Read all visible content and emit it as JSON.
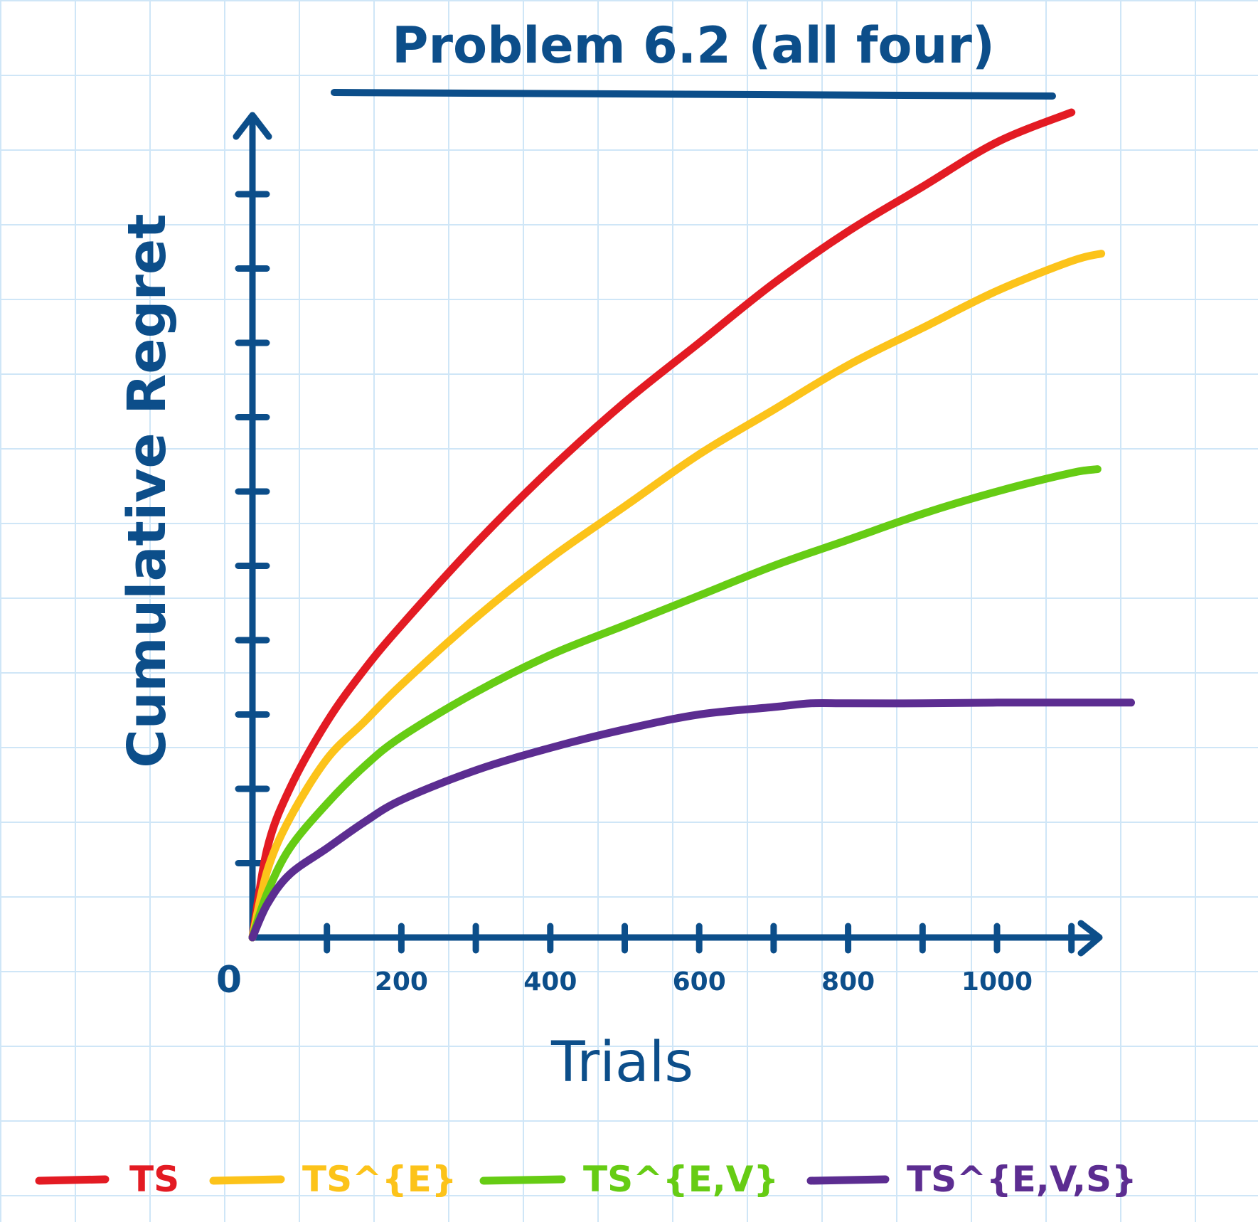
{
  "chart_data": {
    "type": "line",
    "title": "Problem 6.2 (all four)",
    "xlabel": "Trials",
    "ylabel": "Cumulative Regret",
    "xlim": [
      0,
      1150
    ],
    "ylim": [
      0,
      11
    ],
    "grid": true,
    "legend_position": "bottom",
    "x_ticks": [
      0,
      200,
      400,
      600,
      800,
      1000
    ],
    "x_tick_labels": [
      "0",
      "200",
      "400",
      "600",
      "800",
      "1000"
    ],
    "y_tick_count": 10,
    "series": [
      {
        "name": "TS",
        "color": "#e31b23",
        "x": [
          0,
          20,
          50,
          100,
          150,
          200,
          300,
          400,
          500,
          600,
          700,
          800,
          900,
          1000,
          1100
        ],
        "y": [
          0,
          1.2,
          2.0,
          2.9,
          3.6,
          4.2,
          5.3,
          6.3,
          7.2,
          8.0,
          8.8,
          9.5,
          10.1,
          10.7,
          11.1
        ]
      },
      {
        "name": "TS^{E}",
        "color": "#fcc31a",
        "x": [
          0,
          20,
          50,
          100,
          150,
          200,
          300,
          400,
          500,
          600,
          700,
          800,
          900,
          1000,
          1100,
          1140
        ],
        "y": [
          0,
          0.9,
          1.6,
          2.4,
          2.9,
          3.4,
          4.3,
          5.1,
          5.8,
          6.5,
          7.1,
          7.7,
          8.2,
          8.7,
          9.1,
          9.2
        ]
      },
      {
        "name": "TS^{E,V}",
        "color": "#66cc14",
        "x": [
          0,
          20,
          50,
          100,
          150,
          200,
          300,
          400,
          500,
          600,
          700,
          800,
          900,
          1000,
          1100,
          1135
        ],
        "y": [
          0,
          0.6,
          1.2,
          1.8,
          2.3,
          2.7,
          3.3,
          3.8,
          4.2,
          4.6,
          5.0,
          5.35,
          5.7,
          6.0,
          6.25,
          6.3
        ]
      },
      {
        "name": "TS^{E,V,S}",
        "color": "#5c2d91",
        "x": [
          0,
          20,
          50,
          100,
          150,
          200,
          300,
          400,
          500,
          600,
          700,
          750,
          800,
          900,
          1000,
          1100,
          1180
        ],
        "y": [
          0,
          0.45,
          0.85,
          1.2,
          1.55,
          1.85,
          2.25,
          2.55,
          2.8,
          3.0,
          3.1,
          3.15,
          3.15,
          3.15,
          3.16,
          3.16,
          3.16
        ]
      }
    ]
  }
}
